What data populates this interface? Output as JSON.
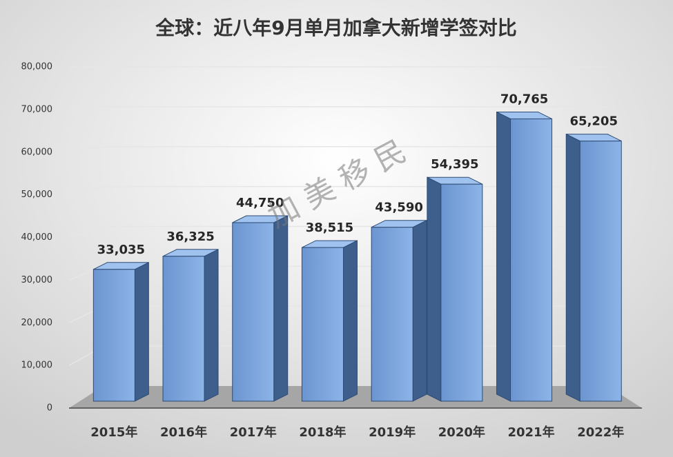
{
  "chart_data": {
    "type": "bar",
    "title": "全球：近八年9月单月加拿大新增学签对比",
    "categories": [
      "2015年",
      "2016年",
      "2017年",
      "2018年",
      "2019年",
      "2020年",
      "2021年",
      "2022年"
    ],
    "values": [
      33035,
      36325,
      44750,
      38515,
      43590,
      54395,
      70765,
      65205
    ],
    "value_labels": [
      "33,035",
      "36,325",
      "44,750",
      "38,515",
      "43,590",
      "54,395",
      "70,765",
      "65,205"
    ],
    "color": "#6f9ad6",
    "ylim": [
      0,
      80000
    ],
    "yticks": [
      0,
      {
        "value": 10000,
        "label": "10,000"
      },
      {
        "value": 20000,
        "label": "20,000"
      },
      {
        "value": 30000,
        "label": "30,000"
      },
      {
        "value": 40000,
        "label": "40,000"
      },
      {
        "value": 50000,
        "label": "50,000"
      },
      {
        "value": 60000,
        "label": "60,000"
      },
      {
        "value": 70000,
        "label": "70,000"
      },
      {
        "value": 80000,
        "label": "80,000"
      }
    ],
    "grid": true,
    "watermark": "加 美 移 民"
  }
}
